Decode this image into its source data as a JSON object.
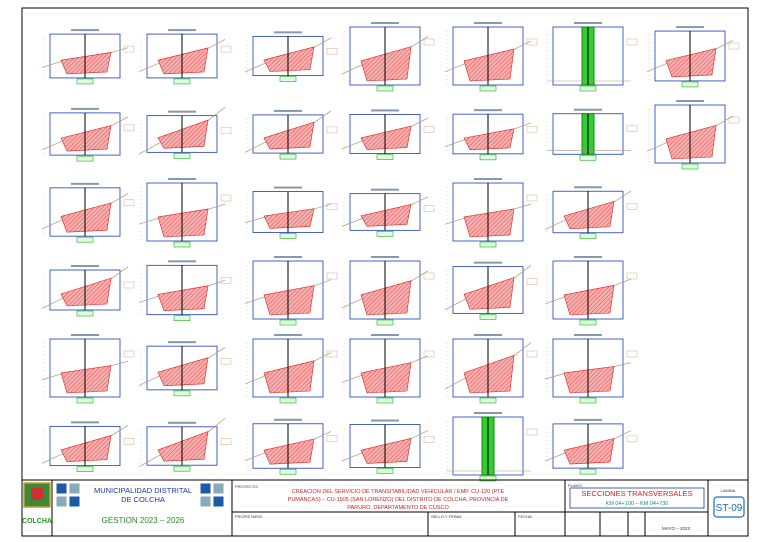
{
  "header": {
    "entity_line1": "MUNICIPALIDAD DISTRITAL",
    "entity_line2": "DE COLCHA",
    "term": "GESTION 2023 – 2026",
    "logo_text": "COLCHA"
  },
  "project": {
    "label": "PROYECTO:",
    "line1": "CREACION DEL SERVICIO DE TRANSITABILIDAD VEHICULAR / EMP. CU-120 (PTE",
    "line2": "PUMANCAS) – CU-1505 (SAN LORENZO) DEL DISTRITO DE COLCHA, PROVINCIA DE",
    "line3": "PARURO, DEPARTAMENTO DE CUSCO"
  },
  "owner": {
    "label": "PROPIETARIO:"
  },
  "seal": {
    "label": "SELLO Y FIRMA:"
  },
  "sheet": {
    "label": "PLANO:",
    "title": "SECCIONES TRANSVERSALES",
    "range": "KM 04+100 – KM 04+730",
    "date_label": "FECHA:",
    "date": "MAYO – 2023",
    "number_label": "LAMINA",
    "number": "ST-09"
  }
}
